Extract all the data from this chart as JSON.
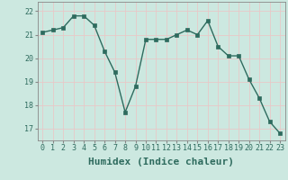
{
  "x": [
    0,
    1,
    2,
    3,
    4,
    5,
    6,
    7,
    8,
    9,
    10,
    11,
    12,
    13,
    14,
    15,
    16,
    17,
    18,
    19,
    20,
    21,
    22,
    23
  ],
  "y": [
    21.1,
    21.2,
    21.3,
    21.8,
    21.8,
    21.4,
    20.3,
    19.4,
    17.7,
    18.8,
    20.8,
    20.8,
    20.8,
    21.0,
    21.2,
    21.0,
    21.6,
    20.5,
    20.1,
    20.1,
    19.1,
    18.3,
    17.3,
    16.8
  ],
  "xlabel": "Humidex (Indice chaleur)",
  "ylabel": "",
  "title": "",
  "ylim": [
    16.5,
    22.4
  ],
  "xlim": [
    -0.5,
    23.5
  ],
  "yticks": [
    17,
    18,
    19,
    20,
    21,
    22
  ],
  "xticks": [
    0,
    1,
    2,
    3,
    4,
    5,
    6,
    7,
    8,
    9,
    10,
    11,
    12,
    13,
    14,
    15,
    16,
    17,
    18,
    19,
    20,
    21,
    22,
    23
  ],
  "line_color": "#2e6b5e",
  "marker_color": "#2e6b5e",
  "bg_color": "#cce8e0",
  "grid_color": "#e8c8c8",
  "label_fontsize": 8,
  "tick_fontsize": 6,
  "xlabel_fontsize": 8
}
